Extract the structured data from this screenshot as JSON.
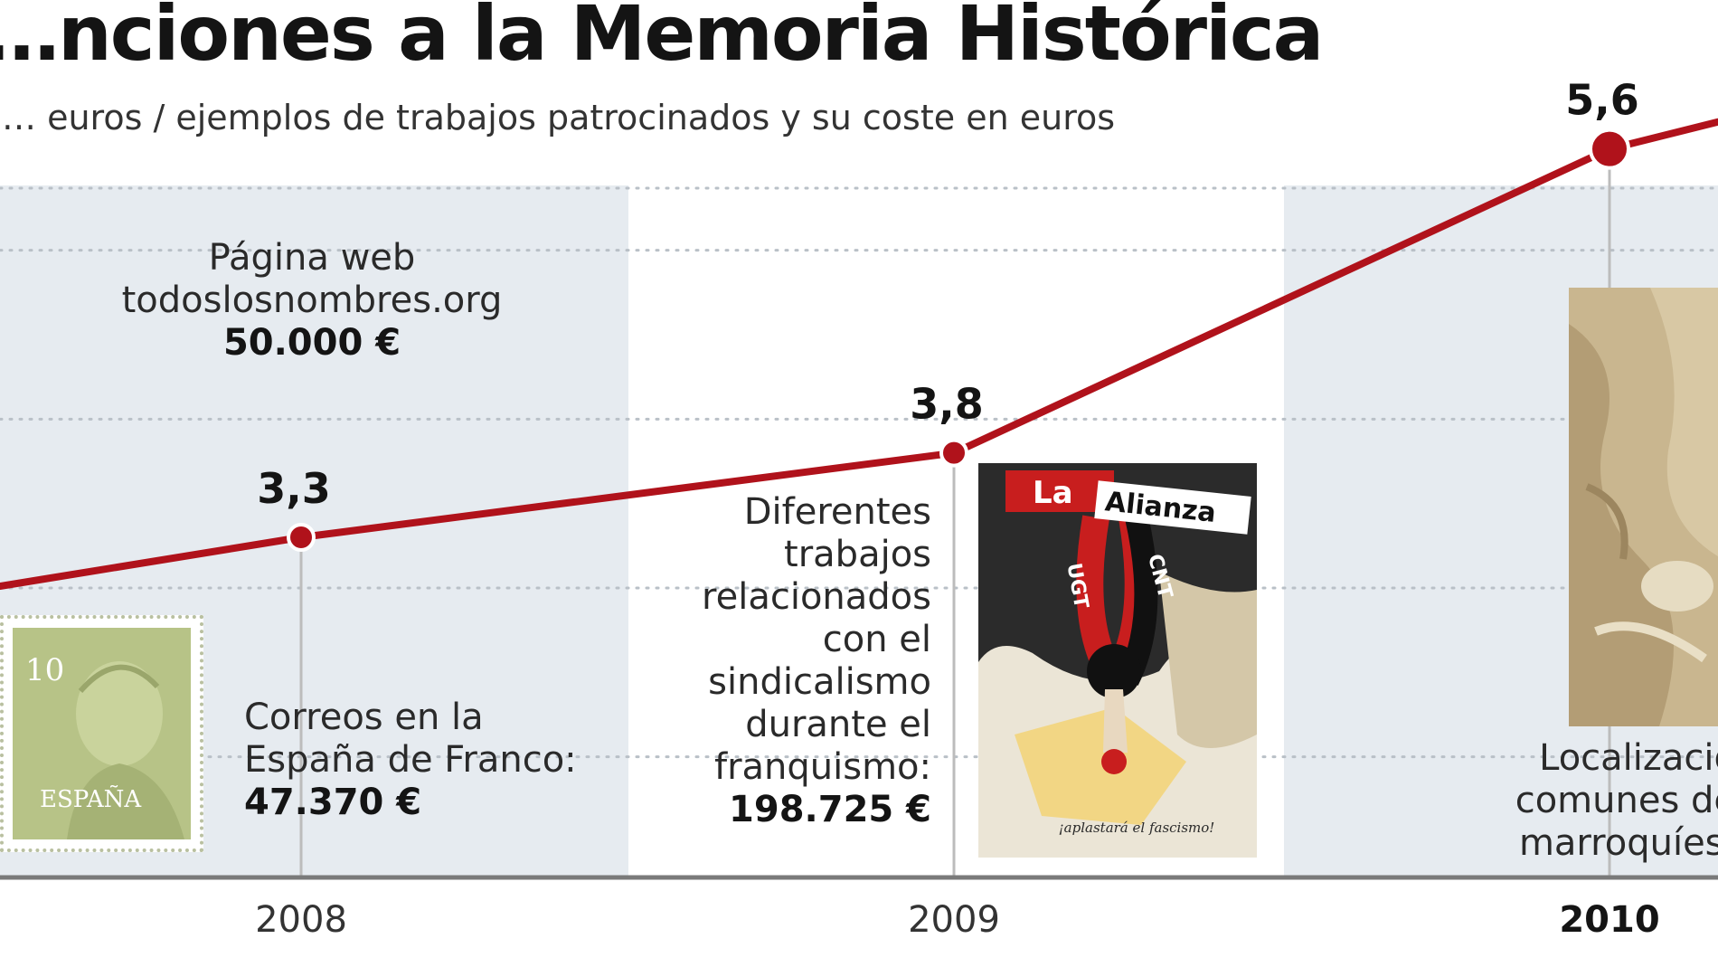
{
  "chart_data": {
    "type": "line",
    "title": "…nciones a la Memoria Histórica",
    "subtitle": "… euros / ejemplos de trabajos patrocinados y su coste en euros",
    "categories": [
      "2008",
      "2009",
      "2010"
    ],
    "x_label_bold": [
      "2010"
    ],
    "series": [
      {
        "values": [
          3.3,
          3.8,
          5.6
        ]
      }
    ],
    "value_labels": [
      "3,3",
      "3,8",
      "5,6"
    ],
    "ylim": [
      0,
      6
    ],
    "grid": true,
    "colors": {
      "line": "#b0121b",
      "band": "#e6ebf0",
      "grid": "#b9c0c7"
    }
  },
  "notes": {
    "web": {
      "line1": "Página web",
      "line2": "todoslosnombres.org",
      "amount": "50.000 €"
    },
    "correos": {
      "line1": "Correos en la",
      "line2": "España de Franco:",
      "amount": "47.370 €"
    },
    "sindicalismo": {
      "line1": "Diferentes",
      "line2": "trabajos",
      "line3": "relacionados",
      "line4": "con el",
      "line5": "sindicalismo",
      "line6": "durante el",
      "line7": "franquismo:",
      "amount": "198.725 €"
    },
    "localizacion": {
      "line1": "Localizació…",
      "line2": "comunes de…",
      "line3": "marroquíes:…"
    }
  },
  "images": {
    "stamp": {
      "icon": "franco-stamp-image",
      "stamp_value": "10",
      "stamp_country": "ESPAÑA"
    },
    "poster": {
      "icon": "union-poster-image",
      "text_top": "La",
      "text_banner": "Alianza",
      "text_left": "UGT",
      "text_right": "CNT",
      "text_bottom": "¡aplastará el fascismo!"
    },
    "grave": {
      "icon": "mass-grave-photo"
    }
  }
}
